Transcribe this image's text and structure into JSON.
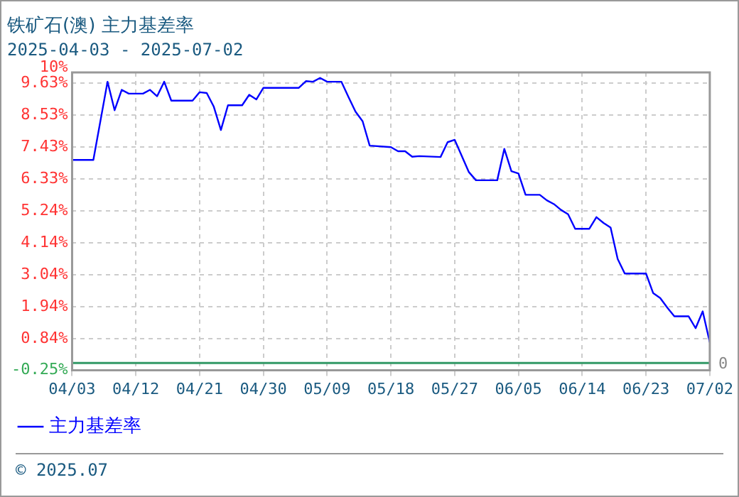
{
  "chart_data": {
    "type": "line",
    "title": "铁矿石(澳) 主力基差率",
    "subtitle": "2025-04-03 - 2025-07-02",
    "x": [
      "2025-04-03",
      "2025-04-06",
      "2025-04-08",
      "2025-04-09",
      "2025-04-10",
      "2025-04-11",
      "2025-04-13",
      "2025-04-14",
      "2025-04-15",
      "2025-04-16",
      "2025-04-17",
      "2025-04-20",
      "2025-04-21",
      "2025-04-22",
      "2025-04-23",
      "2025-04-24",
      "2025-04-25",
      "2025-04-27",
      "2025-04-28",
      "2025-04-29",
      "2025-04-30",
      "2025-05-05",
      "2025-05-06",
      "2025-05-07",
      "2025-05-08",
      "2025-05-09",
      "2025-05-11",
      "2025-05-12",
      "2025-05-13",
      "2025-05-14",
      "2025-05-15",
      "2025-05-18",
      "2025-05-19",
      "2025-05-20",
      "2025-05-21",
      "2025-05-22",
      "2025-05-25",
      "2025-05-26",
      "2025-05-27",
      "2025-05-29",
      "2025-05-30",
      "2025-06-02",
      "2025-06-03",
      "2025-06-04",
      "2025-06-05",
      "2025-06-06",
      "2025-06-08",
      "2025-06-09",
      "2025-06-10",
      "2025-06-11",
      "2025-06-12",
      "2025-06-13",
      "2025-06-15",
      "2025-06-16",
      "2025-06-17",
      "2025-06-18",
      "2025-06-19",
      "2025-06-20",
      "2025-06-23",
      "2025-06-24",
      "2025-06-25",
      "2025-06-26",
      "2025-06-27",
      "2025-06-29",
      "2025-06-30",
      "2025-07-01",
      "2025-07-02"
    ],
    "series": [
      {
        "name": "主力基差率",
        "color": "#0000ff",
        "values": [
          6.99,
          6.99,
          9.68,
          8.7,
          9.4,
          9.27,
          9.27,
          9.4,
          9.18,
          9.68,
          9.03,
          9.03,
          9.32,
          9.29,
          8.82,
          8.02,
          8.87,
          8.87,
          9.23,
          9.07,
          9.47,
          9.47,
          9.7,
          9.68,
          9.81,
          9.68,
          9.68,
          9.16,
          8.65,
          8.32,
          7.48,
          7.43,
          7.29,
          7.29,
          7.1,
          7.12,
          7.09,
          7.6,
          7.68,
          6.57,
          6.29,
          6.29,
          7.37,
          6.6,
          6.52,
          5.79,
          5.79,
          5.6,
          5.47,
          5.27,
          5.12,
          4.62,
          4.62,
          5.02,
          4.82,
          4.66,
          3.58,
          3.08,
          3.08,
          2.41,
          2.24,
          1.91,
          1.61,
          1.61,
          1.2,
          1.78,
          0.71
        ]
      }
    ],
    "xlim": [
      "2025-04-03",
      "2025-07-02"
    ],
    "xticks": [
      {
        "value": "2025-04-03",
        "label": "04/03"
      },
      {
        "value": "2025-04-12",
        "label": "04/12"
      },
      {
        "value": "2025-04-21",
        "label": "04/21"
      },
      {
        "value": "2025-04-30",
        "label": "04/30"
      },
      {
        "value": "2025-05-09",
        "label": "05/09"
      },
      {
        "value": "2025-05-18",
        "label": "05/18"
      },
      {
        "value": "2025-05-27",
        "label": "05/27"
      },
      {
        "value": "2025-06-05",
        "label": "06/05"
      },
      {
        "value": "2025-06-14",
        "label": "06/14"
      },
      {
        "value": "2025-06-23",
        "label": "06/23"
      },
      {
        "value": "2025-07-02",
        "label": "07/02"
      }
    ],
    "ylim": [
      -0.25,
      10
    ],
    "yticks": [
      {
        "value": -0.25,
        "label": "-0.25%"
      },
      {
        "value": 0.84,
        "label": "0.84%"
      },
      {
        "value": 1.94,
        "label": "1.94%"
      },
      {
        "value": 3.04,
        "label": "3.04%"
      },
      {
        "value": 4.14,
        "label": "4.14%"
      },
      {
        "value": 5.24,
        "label": "5.24%"
      },
      {
        "value": 6.33,
        "label": "6.33%"
      },
      {
        "value": 7.43,
        "label": "7.43%"
      },
      {
        "value": 8.53,
        "label": "8.53%"
      },
      {
        "value": 9.63,
        "label": "9.63%"
      },
      {
        "value": 10,
        "label": "10%"
      }
    ],
    "ref_lines": [
      {
        "axis": "y",
        "value": 0,
        "label": "0",
        "color": "#339966"
      }
    ],
    "grid": true,
    "legend": "bottom",
    "marker": "none",
    "line_style": "solid",
    "annotations": [
      "© 2025.07"
    ]
  }
}
